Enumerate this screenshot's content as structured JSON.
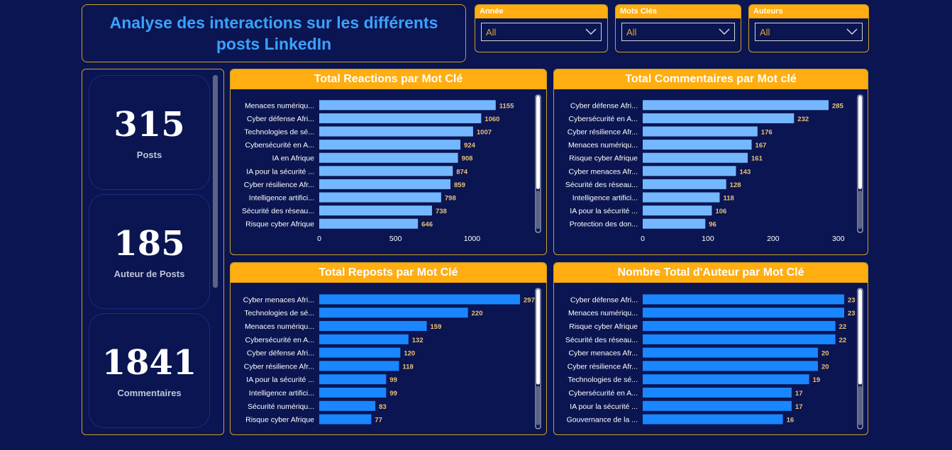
{
  "header": {
    "title": "Analyse des interactions sur les différents posts LinkedIn"
  },
  "slicers": [
    {
      "label": "Année",
      "value": "All"
    },
    {
      "label": "Mots Clés",
      "value": "All"
    },
    {
      "label": "Auteurs",
      "value": "All"
    }
  ],
  "kpis": [
    {
      "value": "315",
      "label": "Posts"
    },
    {
      "value": "185",
      "label": "Auteur de Posts"
    },
    {
      "value": "1841",
      "label": "Commentaires"
    }
  ],
  "colors": {
    "background": "#0b1551",
    "accent": "#ffad10",
    "bar_light": "#74b7ff",
    "bar_blue": "#1a86ff",
    "value_label": "#e8c27a",
    "title": "#3ba1ff"
  },
  "chart_data": [
    {
      "type": "bar",
      "orientation": "horizontal",
      "title": "Total Reactions par Mot Clé",
      "categories": [
        "Menaces numériqu...",
        "Cyber défense Afri...",
        "Technologies de sé...",
        "Cybersécurité en A...",
        "IA en Afrique",
        "IA pour la sécurité ...",
        "Cyber résilience Afr...",
        "Intelligence artifici...",
        "Sécurité des réseau...",
        "Risque cyber Afrique"
      ],
      "values": [
        1155,
        1060,
        1007,
        924,
        908,
        874,
        859,
        798,
        738,
        646
      ],
      "xlim": [
        0,
        1300
      ],
      "xticks": [
        0,
        500,
        1000
      ],
      "value_labels": [
        "1155",
        "1060",
        "1007",
        "924",
        "908",
        "874",
        "859",
        "798",
        "738",
        "646"
      ],
      "tick_labels": [
        "0",
        "500",
        "1000"
      ],
      "color": "#74b7ff"
    },
    {
      "type": "bar",
      "orientation": "horizontal",
      "title": "Total Commentaires par Mot clé",
      "categories": [
        "Cyber défense Afri...",
        "Cybersécurité en A...",
        "Cyber résilience Afr...",
        "Menaces numériqu...",
        "Risque cyber Afrique",
        "Cyber menaces Afr...",
        "Sécurité des réseau...",
        "Intelligence artifici...",
        "IA pour la sécurité ...",
        "Protection des don..."
      ],
      "values": [
        285,
        232,
        176,
        167,
        161,
        143,
        128,
        118,
        106,
        96
      ],
      "xlim": [
        0,
        310
      ],
      "xticks": [
        0,
        100,
        200,
        300
      ],
      "value_labels": [
        "285",
        "232",
        "176",
        "167",
        "161",
        "143",
        "128",
        "118",
        "106",
        "96"
      ],
      "tick_labels": [
        "0",
        "100",
        "200",
        "300"
      ],
      "color": "#74b7ff"
    },
    {
      "type": "bar",
      "orientation": "horizontal",
      "title": "Total Reposts par Mot Clé",
      "categories": [
        "Cyber menaces Afri...",
        "Technologies de sé...",
        "Menaces numériqu...",
        "Cybersécurité en A...",
        "Cyber défense Afri...",
        "Cyber résilience Afr...",
        "IA pour la sécurité ...",
        "Intelligence artifici...",
        "Sécurité numériqu...",
        "Risque cyber Afrique"
      ],
      "values": [
        297,
        220,
        159,
        132,
        120,
        118,
        99,
        99,
        83,
        77
      ],
      "xlim": [
        0,
        297
      ],
      "xticks": [],
      "value_labels": [
        "297",
        "220",
        "159",
        "132",
        "120",
        "118",
        "99",
        "99",
        "83",
        "77"
      ],
      "tick_labels": [],
      "color": "#1a86ff"
    },
    {
      "type": "bar",
      "orientation": "horizontal",
      "title": "Nombre Total d'Auteur par Mot Clé",
      "categories": [
        "Cyber défense Afri...",
        "Menaces numériqu...",
        "Risque cyber Afrique",
        "Sécurité des réseau...",
        "Cyber menaces Afr...",
        "Cyber résilience Afr...",
        "Technologies de sé...",
        "Cybersécurité en A...",
        "IA pour la sécurité ...",
        "Gouvernance de la ..."
      ],
      "values": [
        23,
        23,
        22,
        22,
        20,
        20,
        19,
        17,
        17,
        16
      ],
      "xlim": [
        0,
        23
      ],
      "xticks": [],
      "value_labels": [
        "23",
        "23",
        "22",
        "22",
        "20",
        "20",
        "19",
        "17",
        "17",
        "16"
      ],
      "tick_labels": [],
      "color": "#1a86ff"
    }
  ]
}
